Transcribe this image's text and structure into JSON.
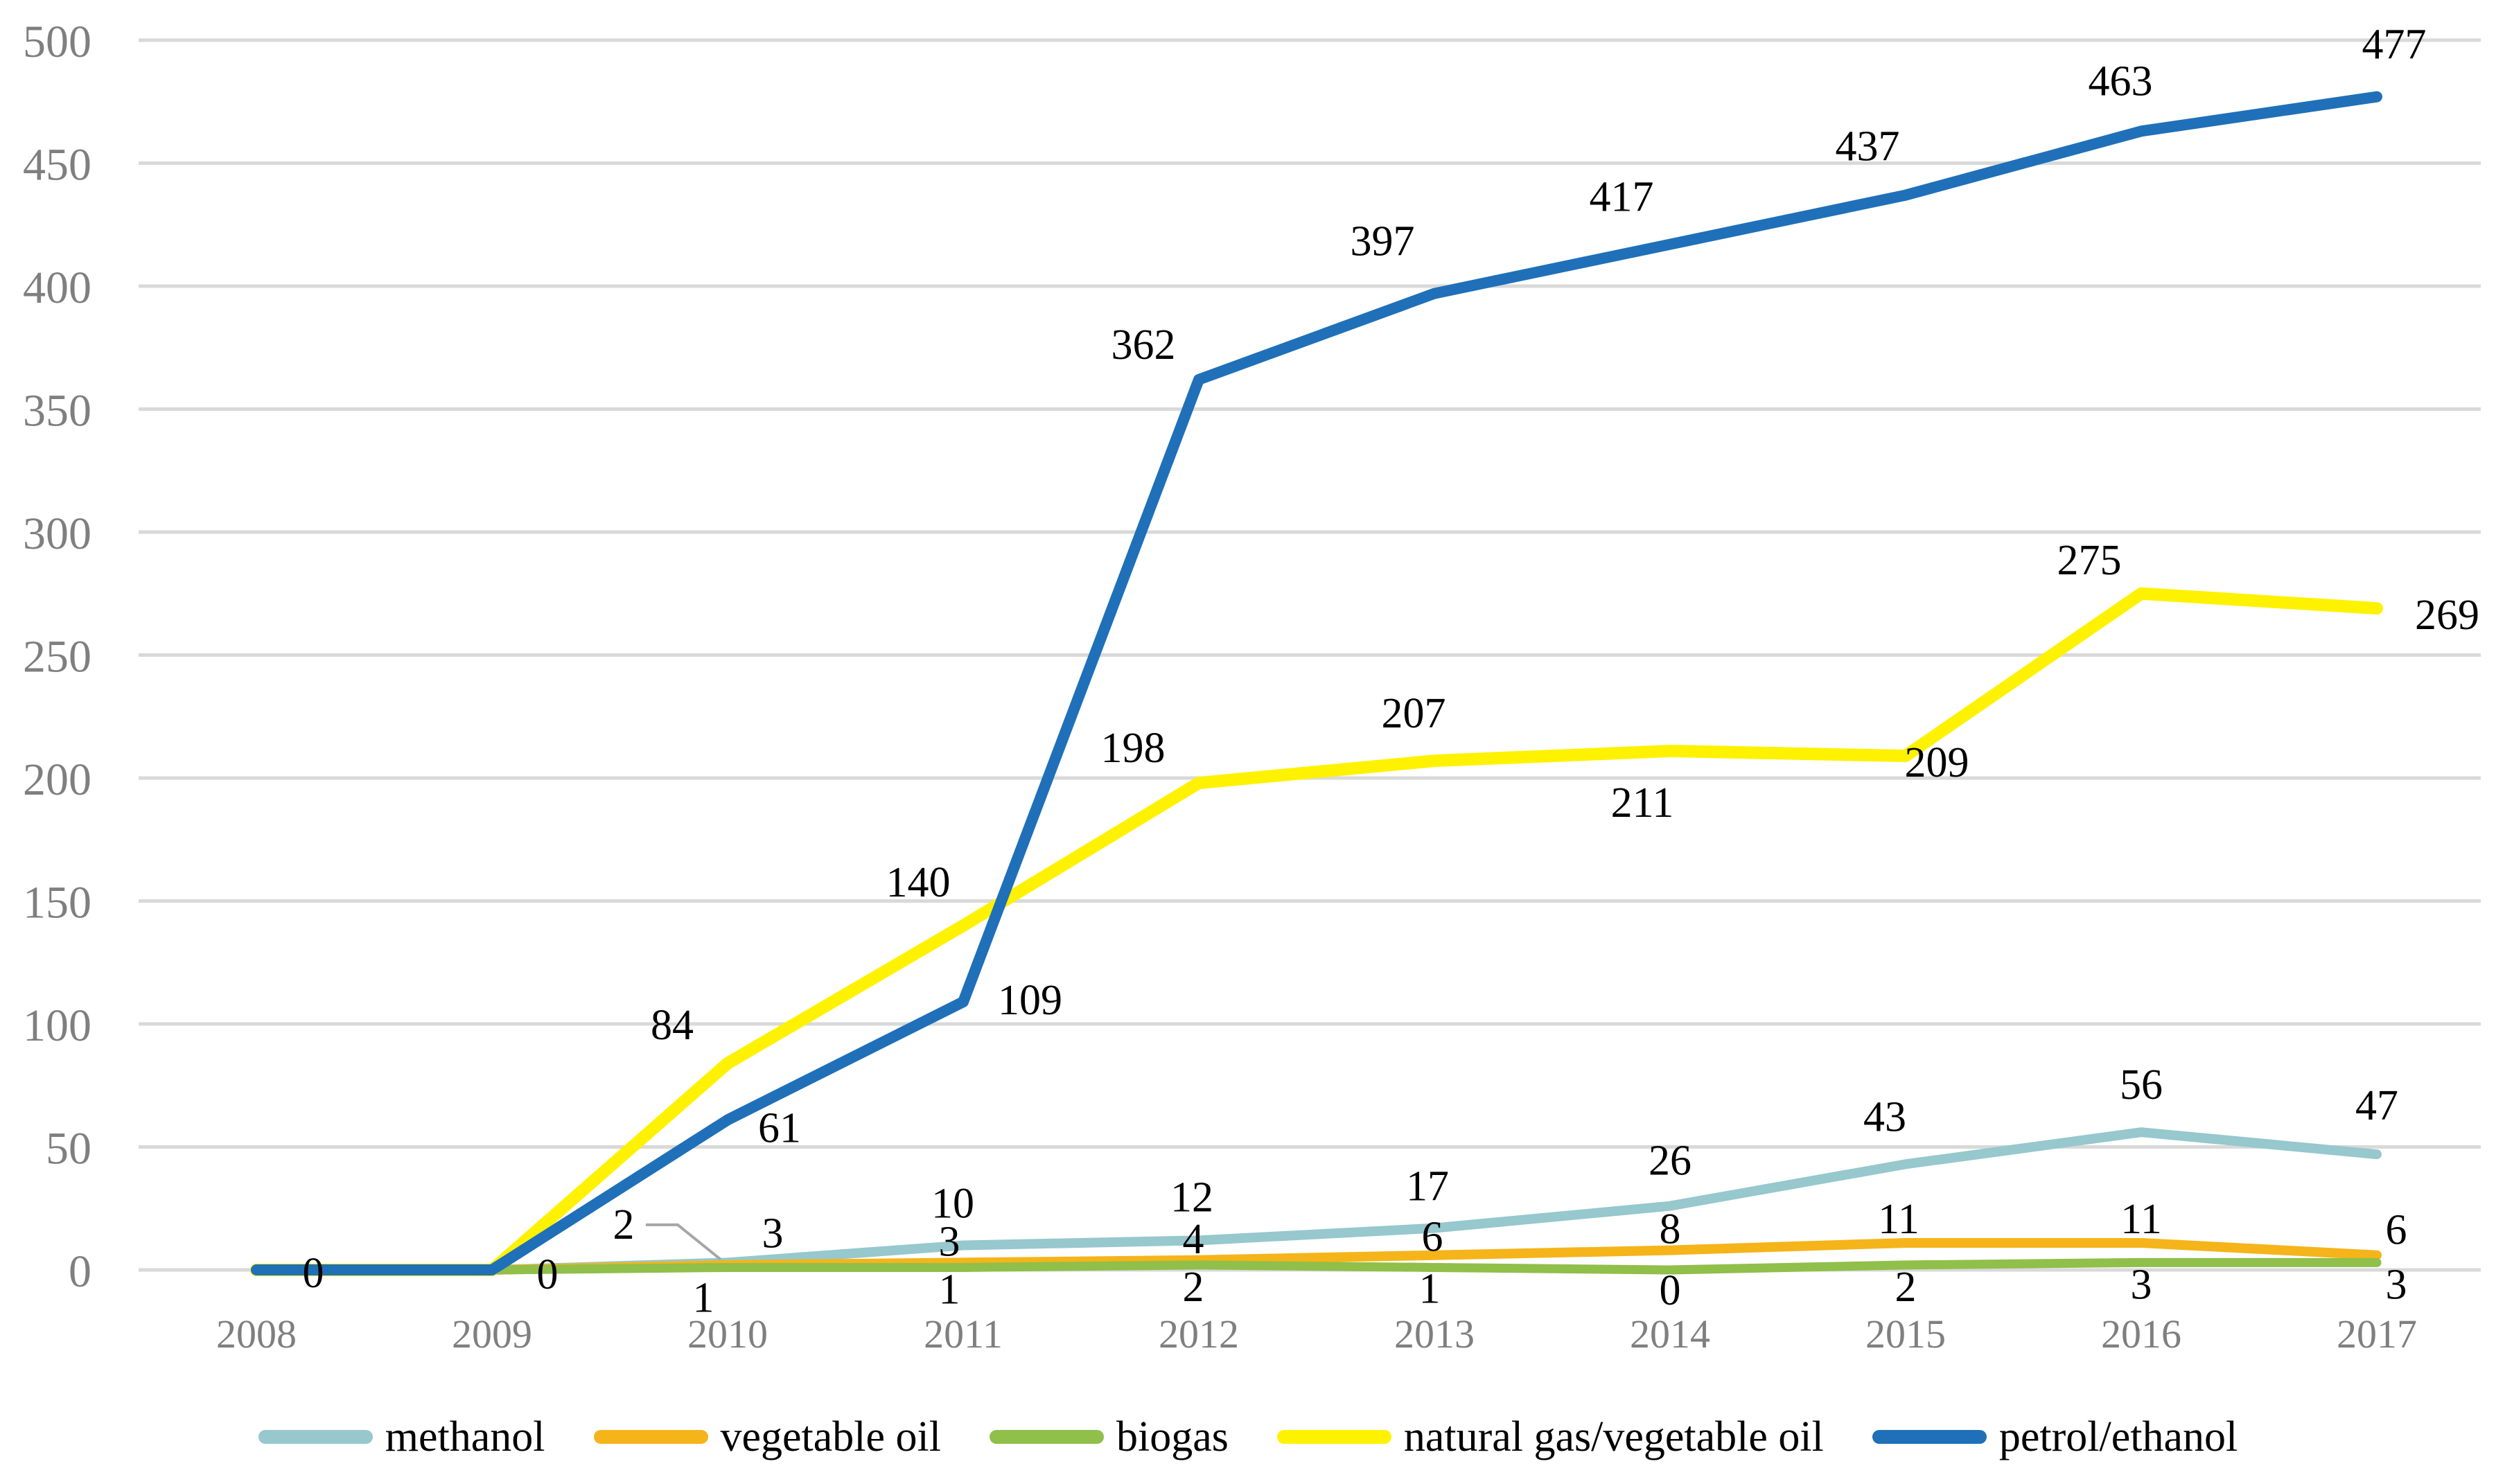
{
  "chart_data": {
    "type": "line",
    "title": "",
    "xlabel": "",
    "ylabel": "",
    "categories": [
      "2008",
      "2009",
      "2010",
      "2011",
      "2012",
      "2013",
      "2014",
      "2015",
      "2016",
      "2017"
    ],
    "ylim": [
      0,
      500
    ],
    "ytick_step": 50,
    "ytick_labels": [
      "0",
      "50",
      "100",
      "150",
      "200",
      "250",
      "300",
      "350",
      "400",
      "450",
      "500"
    ],
    "grid": true,
    "legend_position": "bottom",
    "series": [
      {
        "name": "methanol",
        "color": "#96C8CD",
        "values": [
          0,
          0,
          3,
          10,
          12,
          17,
          26,
          43,
          56,
          47
        ],
        "labels": [
          "",
          "",
          "3",
          "10",
          "12",
          "17",
          "26",
          "43",
          "56",
          "47"
        ],
        "label_placement": "above",
        "label_offsets": {
          "2": [
            65,
            -22
          ],
          "3": [
            -15,
            -40
          ],
          "4": [
            -10,
            -42
          ],
          "5": [
            -10,
            -40
          ],
          "6": [
            0,
            -45
          ],
          "7": [
            -30,
            -48
          ],
          "8": [
            0,
            -48
          ],
          "9": [
            0,
            -50
          ]
        }
      },
      {
        "name": "vegetable oil",
        "color": "#F5B41A",
        "values": [
          0,
          0,
          2,
          3,
          4,
          6,
          8,
          11,
          11,
          6
        ],
        "labels": [
          "",
          "",
          "2",
          "3",
          "4",
          "6",
          "8",
          "11",
          "11",
          "6"
        ],
        "label_placement": "above",
        "label_offsets": {
          "3": [
            -20,
            -10
          ],
          "4": [
            -8,
            -10
          ],
          "5": [
            -3,
            -6
          ],
          "6": [
            0,
            -10
          ],
          "7": [
            -10,
            -14
          ],
          "8": [
            0,
            -14
          ],
          "9": [
            28,
            -16
          ]
        },
        "callout": {
          "index": 2,
          "dx": -150,
          "dy": -38
        }
      },
      {
        "name": "biogas",
        "color": "#90BF4A",
        "values": [
          0,
          0,
          1,
          1,
          2,
          1,
          0,
          2,
          3,
          3
        ],
        "labels": [
          "",
          "",
          "1",
          "1",
          "2",
          "1",
          "0",
          "2",
          "3",
          "3"
        ],
        "label_placement": "below",
        "label_offsets": {
          "2": [
            -35,
            64
          ],
          "3": [
            -20,
            52
          ],
          "4": [
            -8,
            52
          ],
          "5": [
            -7,
            51
          ],
          "6": [
            0,
            50
          ],
          "7": [
            0,
            52
          ],
          "8": [
            0,
            52
          ],
          "9": [
            28,
            52
          ]
        }
      },
      {
        "name": "natural gas/vegetable oil",
        "color": "#FEF200",
        "values": [
          0,
          0,
          84,
          140,
          198,
          207,
          211,
          209,
          275,
          269
        ],
        "labels": [
          "",
          "",
          "84",
          "140",
          "198",
          "207",
          "211",
          "209",
          "275",
          "269"
        ],
        "label_placement": "above",
        "label_offsets": {
          "2": [
            -80,
            -35
          ],
          "3": [
            -65,
            -42
          ],
          "4": [
            -95,
            -30
          ],
          "5": [
            -30,
            -48
          ],
          "6": [
            -40,
            95
          ],
          "7": [
            45,
            30
          ],
          "8": [
            -75,
            -28
          ],
          "9": [
            55,
            30,
            "start"
          ]
        }
      },
      {
        "name": "petrol/ethanol",
        "color": "#1F70B8",
        "values": [
          0,
          0,
          61,
          109,
          362,
          397,
          417,
          437,
          463,
          477
        ],
        "labels": [
          "0",
          "0",
          "61",
          "109",
          "362",
          "397",
          "417",
          "437",
          "463",
          "477"
        ],
        "label_placement": "above",
        "label_offsets": {
          "0": [
            82,
            25
          ],
          "1": [
            80,
            27
          ],
          "2": [
            75,
            32
          ],
          "3": [
            50,
            18,
            "start"
          ],
          "4": [
            -80,
            -30
          ],
          "5": [
            -75,
            -55
          ],
          "6": [
            -70,
            -48
          ],
          "7": [
            -55,
            -50
          ],
          "8": [
            -30,
            -52
          ],
          "9": [
            25,
            -55
          ]
        }
      }
    ],
    "styles": {
      "grid_color": "#D9D9D9",
      "tick_color": "#7F7F7F",
      "data_label_color": "#000000",
      "callout_color": "#A6A6A6",
      "background": "#FFFFFF"
    }
  }
}
